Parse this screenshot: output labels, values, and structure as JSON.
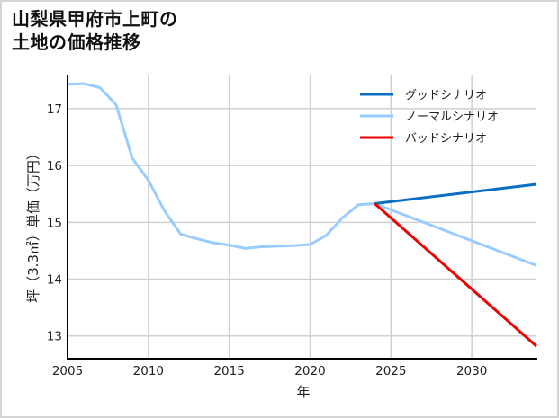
{
  "title": {
    "line1": "山梨県甲府市上町の",
    "line2": "土地の価格推移"
  },
  "chart_data": {
    "type": "line",
    "title": "山梨県甲府市上町の土地の価格推移",
    "xlabel": "年",
    "ylabel": "坪（3.3㎡）単価（万円）",
    "xlim": [
      2005,
      2034
    ],
    "ylim": [
      12.6,
      17.6
    ],
    "xticks": [
      2005,
      2010,
      2015,
      2020,
      2025,
      2030
    ],
    "yticks": [
      13,
      14,
      15,
      16,
      17
    ],
    "grid": true,
    "legend_position": "upper right",
    "series": [
      {
        "name": "グッドシナリオ",
        "color": "#0a6fc4",
        "x": [
          2024,
          2034
        ],
        "y": [
          15.33,
          15.67
        ]
      },
      {
        "name": "ノーマルシナリオ",
        "color": "#99ccff",
        "x": [
          2005,
          2006,
          2007,
          2008,
          2009,
          2010,
          2011,
          2012,
          2013,
          2014,
          2015,
          2016,
          2017,
          2018,
          2019,
          2020,
          2021,
          2022,
          2023,
          2024,
          2034
        ],
        "y": [
          17.43,
          17.44,
          17.37,
          17.07,
          16.13,
          15.74,
          15.2,
          14.79,
          14.71,
          14.64,
          14.6,
          14.54,
          14.57,
          14.58,
          14.59,
          14.61,
          14.77,
          15.08,
          15.31,
          15.33,
          14.24
        ]
      },
      {
        "name": "バッドシナリオ",
        "color": "#ee0000",
        "x": [
          2024,
          2034
        ],
        "y": [
          15.33,
          12.82
        ]
      }
    ]
  }
}
